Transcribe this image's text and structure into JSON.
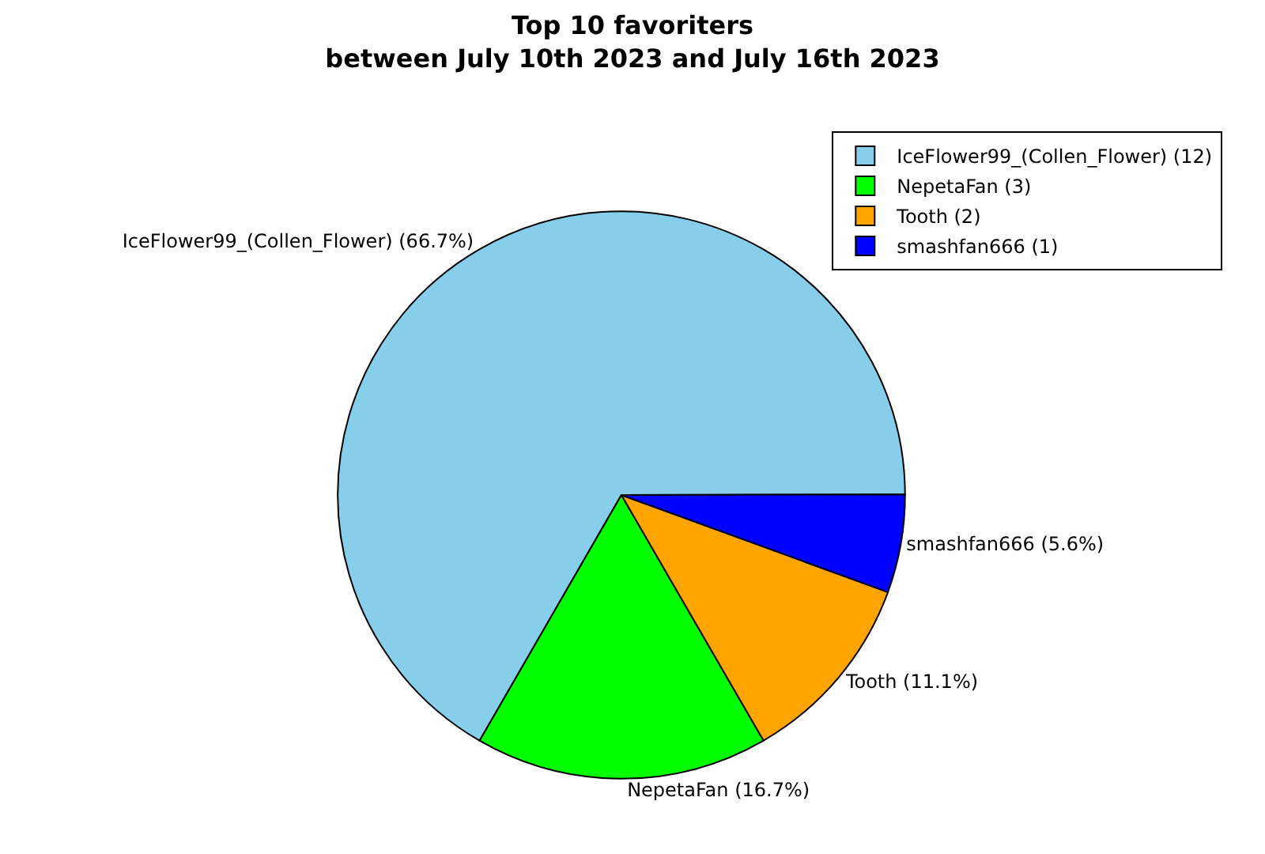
{
  "chart_data": {
    "type": "pie",
    "title": "Top 10 favoriters\nbetween July 10th 2023 and July 16th 2023",
    "categories": [
      "IceFlower99_(Collen_Flower) (12)",
      "NepetaFan (3)",
      "Tooth (2)",
      "smashfan666 (1)"
    ],
    "values": [
      66.7,
      16.7,
      11.1,
      5.6
    ],
    "value_labels": [
      "IceFlower99_(Collen_Flower) (66.7%)",
      "NepetaFan (16.7%)",
      "Tooth (11.1%)",
      "smashfan666 (5.6%)"
    ],
    "colors": [
      "#87ceeb",
      "#00ff00",
      "#ffa500",
      "#0000ff"
    ],
    "legend": "top right"
  }
}
